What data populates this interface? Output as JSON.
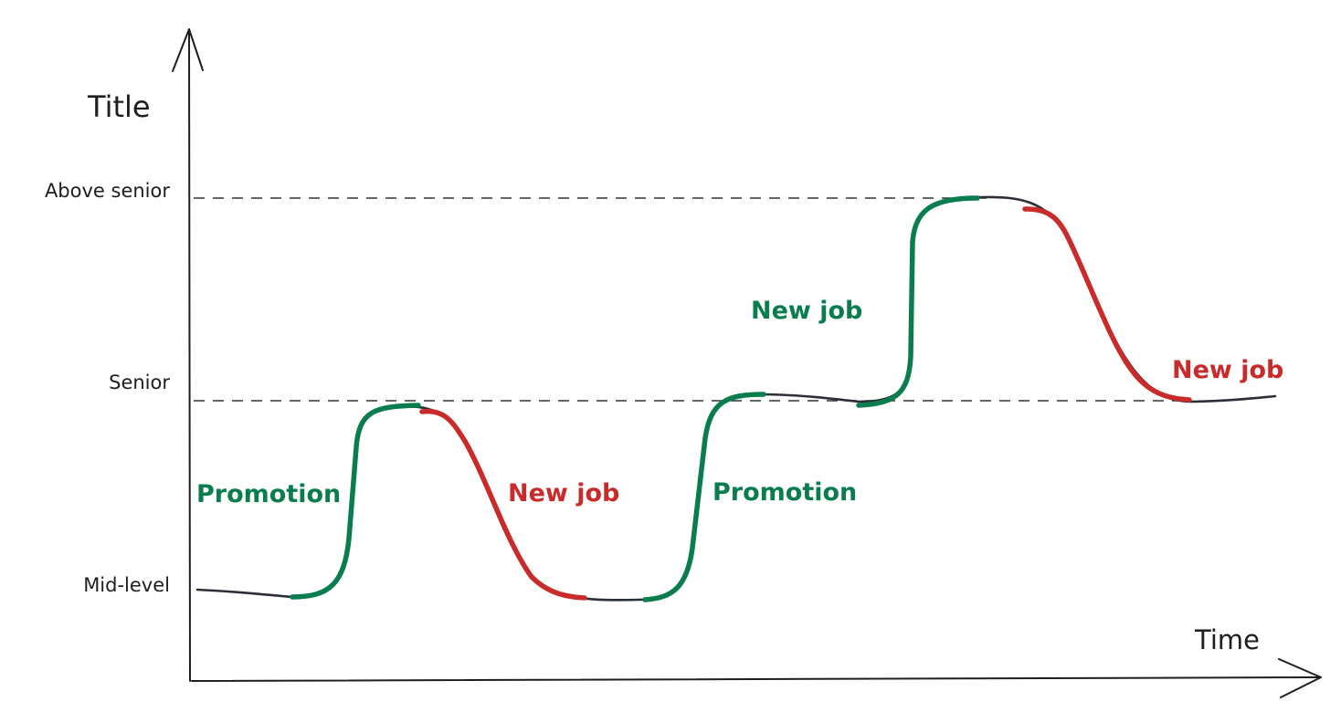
{
  "axes": {
    "y_label": "Title",
    "x_label": "Time"
  },
  "levels": {
    "above_senior": "Above senior",
    "senior": "Senior",
    "mid_level": "Mid-level"
  },
  "events": {
    "promotion_1": "Promotion",
    "new_job_1": "New job",
    "promotion_2": "Promotion",
    "new_job_2": "New job",
    "new_job_3": "New job"
  },
  "colors": {
    "promotion": "#0a7d4f",
    "new_job": "#c92a2a",
    "curve": "#2b2f38",
    "axis": "#1e1e1e"
  }
}
